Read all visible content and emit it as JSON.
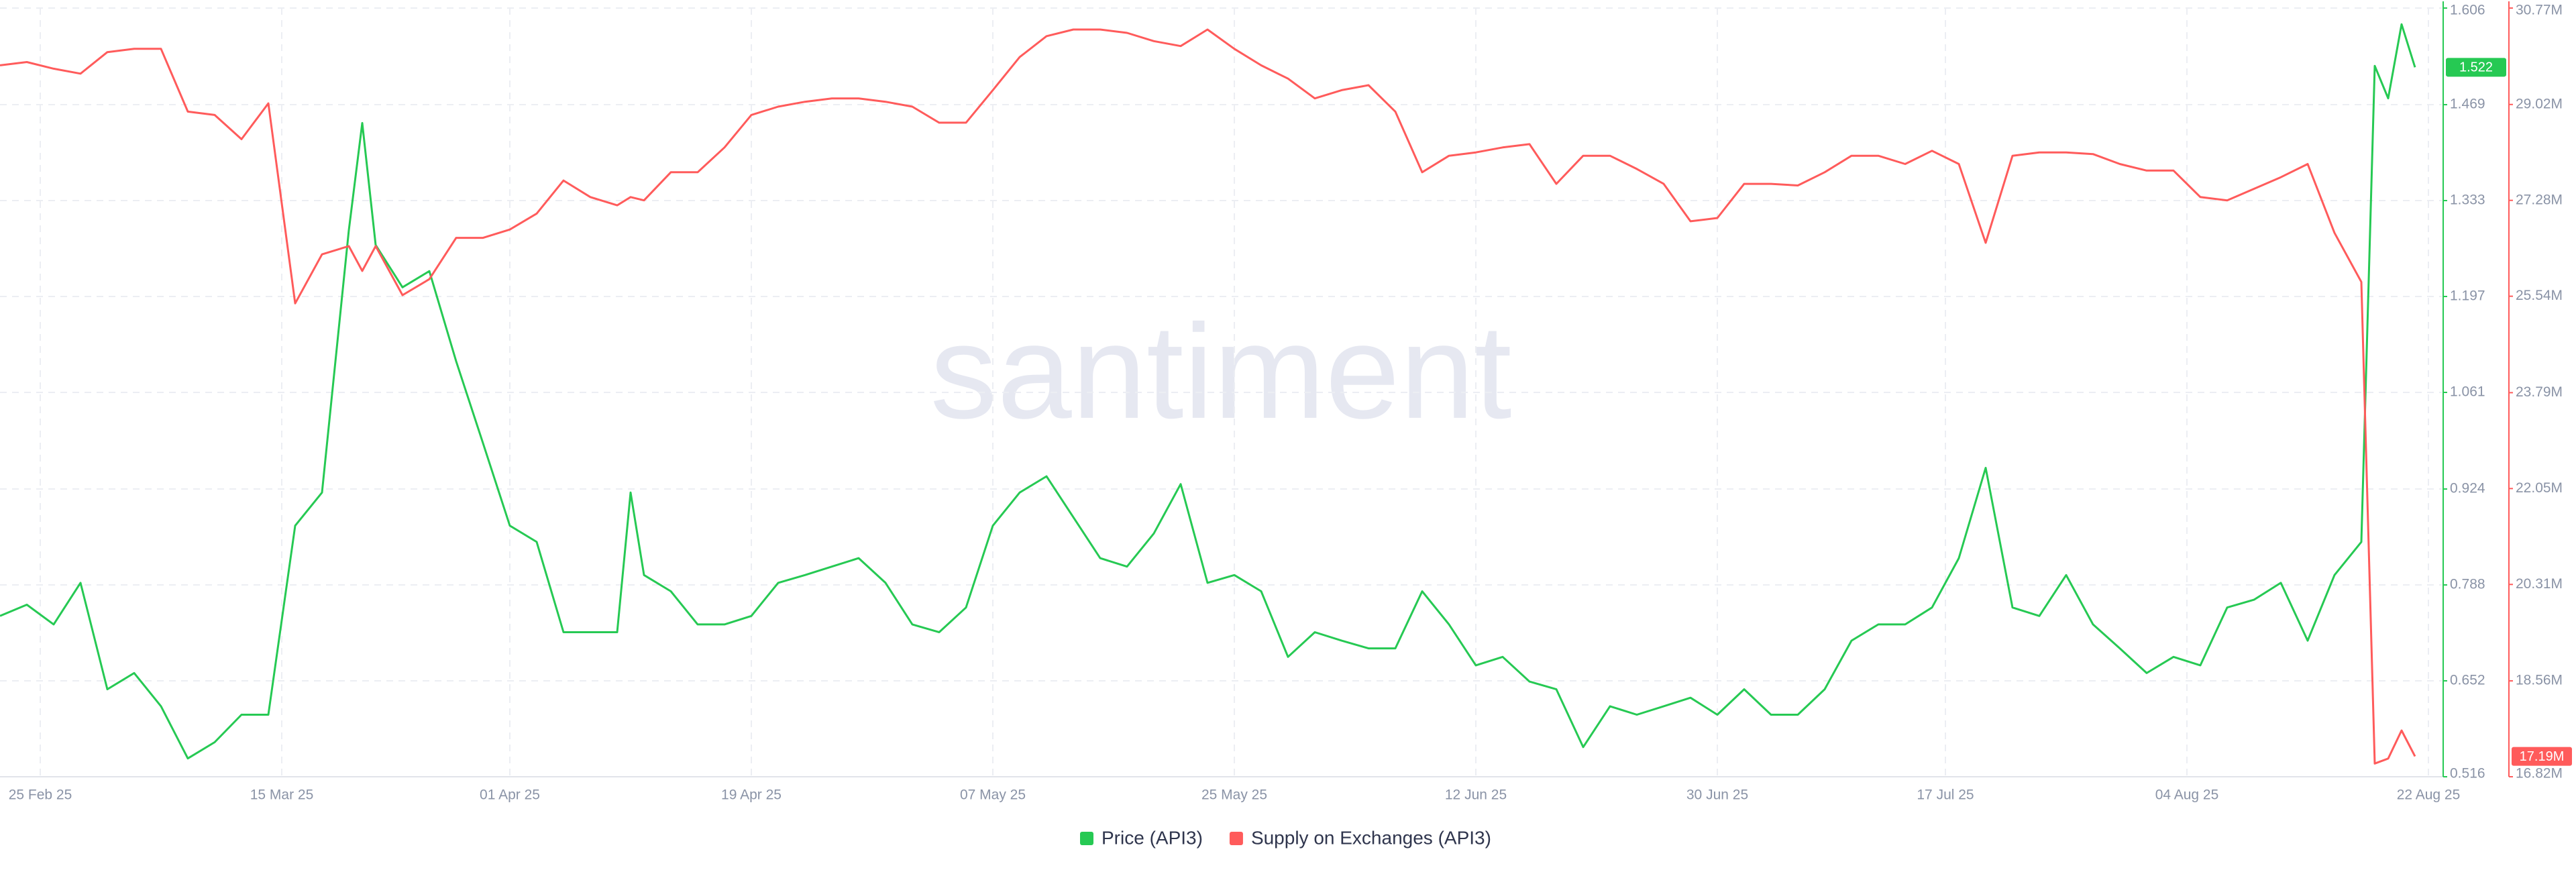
{
  "chart_data": {
    "type": "line",
    "watermark": "santiment",
    "grid": true,
    "x": [
      "2025-02-22",
      "2025-02-24",
      "2025-02-26",
      "2025-02-28",
      "2025-03-02",
      "2025-03-04",
      "2025-03-06",
      "2025-03-08",
      "2025-03-10",
      "2025-03-12",
      "2025-03-14",
      "2025-03-16",
      "2025-03-18",
      "2025-03-20",
      "2025-03-21",
      "2025-03-22",
      "2025-03-24",
      "2025-03-26",
      "2025-03-28",
      "2025-03-30",
      "2025-04-01",
      "2025-04-03",
      "2025-04-05",
      "2025-04-07",
      "2025-04-09",
      "2025-04-10",
      "2025-04-11",
      "2025-04-13",
      "2025-04-15",
      "2025-04-17",
      "2025-04-19",
      "2025-04-21",
      "2025-04-23",
      "2025-04-25",
      "2025-04-27",
      "2025-04-29",
      "2025-05-01",
      "2025-05-03",
      "2025-05-05",
      "2025-05-07",
      "2025-05-09",
      "2025-05-11",
      "2025-05-13",
      "2025-05-15",
      "2025-05-17",
      "2025-05-19",
      "2025-05-21",
      "2025-05-23",
      "2025-05-25",
      "2025-05-27",
      "2025-05-29",
      "2025-05-31",
      "2025-06-02",
      "2025-06-04",
      "2025-06-06",
      "2025-06-08",
      "2025-06-10",
      "2025-06-12",
      "2025-06-14",
      "2025-06-16",
      "2025-06-18",
      "2025-06-20",
      "2025-06-22",
      "2025-06-24",
      "2025-06-26",
      "2025-06-28",
      "2025-06-30",
      "2025-07-02",
      "2025-07-04",
      "2025-07-06",
      "2025-07-08",
      "2025-07-10",
      "2025-07-12",
      "2025-07-14",
      "2025-07-16",
      "2025-07-18",
      "2025-07-20",
      "2025-07-22",
      "2025-07-24",
      "2025-07-26",
      "2025-07-28",
      "2025-07-30",
      "2025-08-01",
      "2025-08-03",
      "2025-08-05",
      "2025-08-07",
      "2025-08-09",
      "2025-08-11",
      "2025-08-13",
      "2025-08-15",
      "2025-08-17",
      "2025-08-18",
      "2025-08-19",
      "2025-08-20",
      "2025-08-21"
    ],
    "xlim": [
      "2025-02-22",
      "2025-08-23"
    ],
    "xticks": [
      {
        "value": "2025-02-25",
        "label": "25 Feb 25"
      },
      {
        "value": "2025-03-15",
        "label": "15 Mar 25"
      },
      {
        "value": "2025-04-01",
        "label": "01 Apr 25"
      },
      {
        "value": "2025-04-19",
        "label": "19 Apr 25"
      },
      {
        "value": "2025-05-07",
        "label": "07 May 25"
      },
      {
        "value": "2025-05-25",
        "label": "25 May 25"
      },
      {
        "value": "2025-06-12",
        "label": "12 Jun 25"
      },
      {
        "value": "2025-06-30",
        "label": "30 Jun 25"
      },
      {
        "value": "2025-07-17",
        "label": "17 Jul 25"
      },
      {
        "value": "2025-08-04",
        "label": "04 Aug 25"
      },
      {
        "value": "2025-08-22",
        "label": "22 Aug 25"
      }
    ],
    "ylim": [
      0.516,
      1.606
    ],
    "yticks": [
      0.516,
      0.652,
      0.788,
      0.924,
      1.061,
      1.197,
      1.333,
      1.469,
      1.606
    ],
    "y2lim": [
      16820000,
      30770000
    ],
    "y2ticks": [
      {
        "value": 16820000,
        "label": "16.82M"
      },
      {
        "value": 18560000,
        "label": "18.56M"
      },
      {
        "value": 20310000,
        "label": "20.31M"
      },
      {
        "value": 22050000,
        "label": "22.05M"
      },
      {
        "value": 23790000,
        "label": "23.79M"
      },
      {
        "value": 25540000,
        "label": "25.54M"
      },
      {
        "value": 27280000,
        "label": "27.28M"
      },
      {
        "value": 29020000,
        "label": "29.02M"
      },
      {
        "value": 30770000,
        "label": "30.77M"
      }
    ],
    "series": [
      {
        "name": "Price (API3)",
        "color": "#26c953",
        "axis": "y",
        "last_label": "1.522",
        "values": [
          0.744,
          0.76,
          0.732,
          0.791,
          0.64,
          0.663,
          0.616,
          0.542,
          0.565,
          0.604,
          0.604,
          0.872,
          0.919,
          1.291,
          1.443,
          1.27,
          1.21,
          1.233,
          1.105,
          0.989,
          0.872,
          0.849,
          0.721,
          0.721,
          0.721,
          0.919,
          0.802,
          0.779,
          0.732,
          0.732,
          0.744,
          0.791,
          0.802,
          0.814,
          0.826,
          0.791,
          0.732,
          0.721,
          0.756,
          0.872,
          0.919,
          0.942,
          0.884,
          0.826,
          0.814,
          0.861,
          0.931,
          0.791,
          0.802,
          0.779,
          0.686,
          0.721,
          0.709,
          0.698,
          0.698,
          0.779,
          0.732,
          0.674,
          0.686,
          0.651,
          0.64,
          0.558,
          0.616,
          0.604,
          0.616,
          0.628,
          0.604,
          0.64,
          0.604,
          0.604,
          0.64,
          0.709,
          0.732,
          0.732,
          0.756,
          0.826,
          0.954,
          0.756,
          0.744,
          0.802,
          0.732,
          0.698,
          0.663,
          0.686,
          0.674,
          0.756,
          0.767,
          0.791,
          0.709,
          0.802,
          0.849,
          1.524,
          1.478,
          1.583,
          1.522
        ]
      },
      {
        "name": "Supply on Exchanges (API3)",
        "color": "#ff5b5b",
        "axis": "y2",
        "last_label": "17.19M",
        "values": [
          29730000,
          29790000,
          29670000,
          29580000,
          29970000,
          30030000,
          30030000,
          28890000,
          28830000,
          28390000,
          29040000,
          25410000,
          26300000,
          26450000,
          26000000,
          26450000,
          25560000,
          25850000,
          26600000,
          26600000,
          26750000,
          27040000,
          27640000,
          27340000,
          27190000,
          27340000,
          27280000,
          27790000,
          27790000,
          28240000,
          28830000,
          28980000,
          29070000,
          29130000,
          29130000,
          29070000,
          28980000,
          28690000,
          28690000,
          29280000,
          29880000,
          30260000,
          30380000,
          30380000,
          30320000,
          30170000,
          30080000,
          30380000,
          30030000,
          29730000,
          29490000,
          29130000,
          29280000,
          29370000,
          28890000,
          27790000,
          28090000,
          28150000,
          28240000,
          28300000,
          27580000,
          28090000,
          28090000,
          27850000,
          27580000,
          26900000,
          26960000,
          27580000,
          27580000,
          27550000,
          27790000,
          28090000,
          28090000,
          27940000,
          28180000,
          27940000,
          26510000,
          28090000,
          28150000,
          28150000,
          28120000,
          27940000,
          27820000,
          27820000,
          27340000,
          27280000,
          27490000,
          27700000,
          27940000,
          26690000,
          25800000,
          17060000,
          17150000,
          17660000,
          17190000
        ]
      }
    ]
  }
}
